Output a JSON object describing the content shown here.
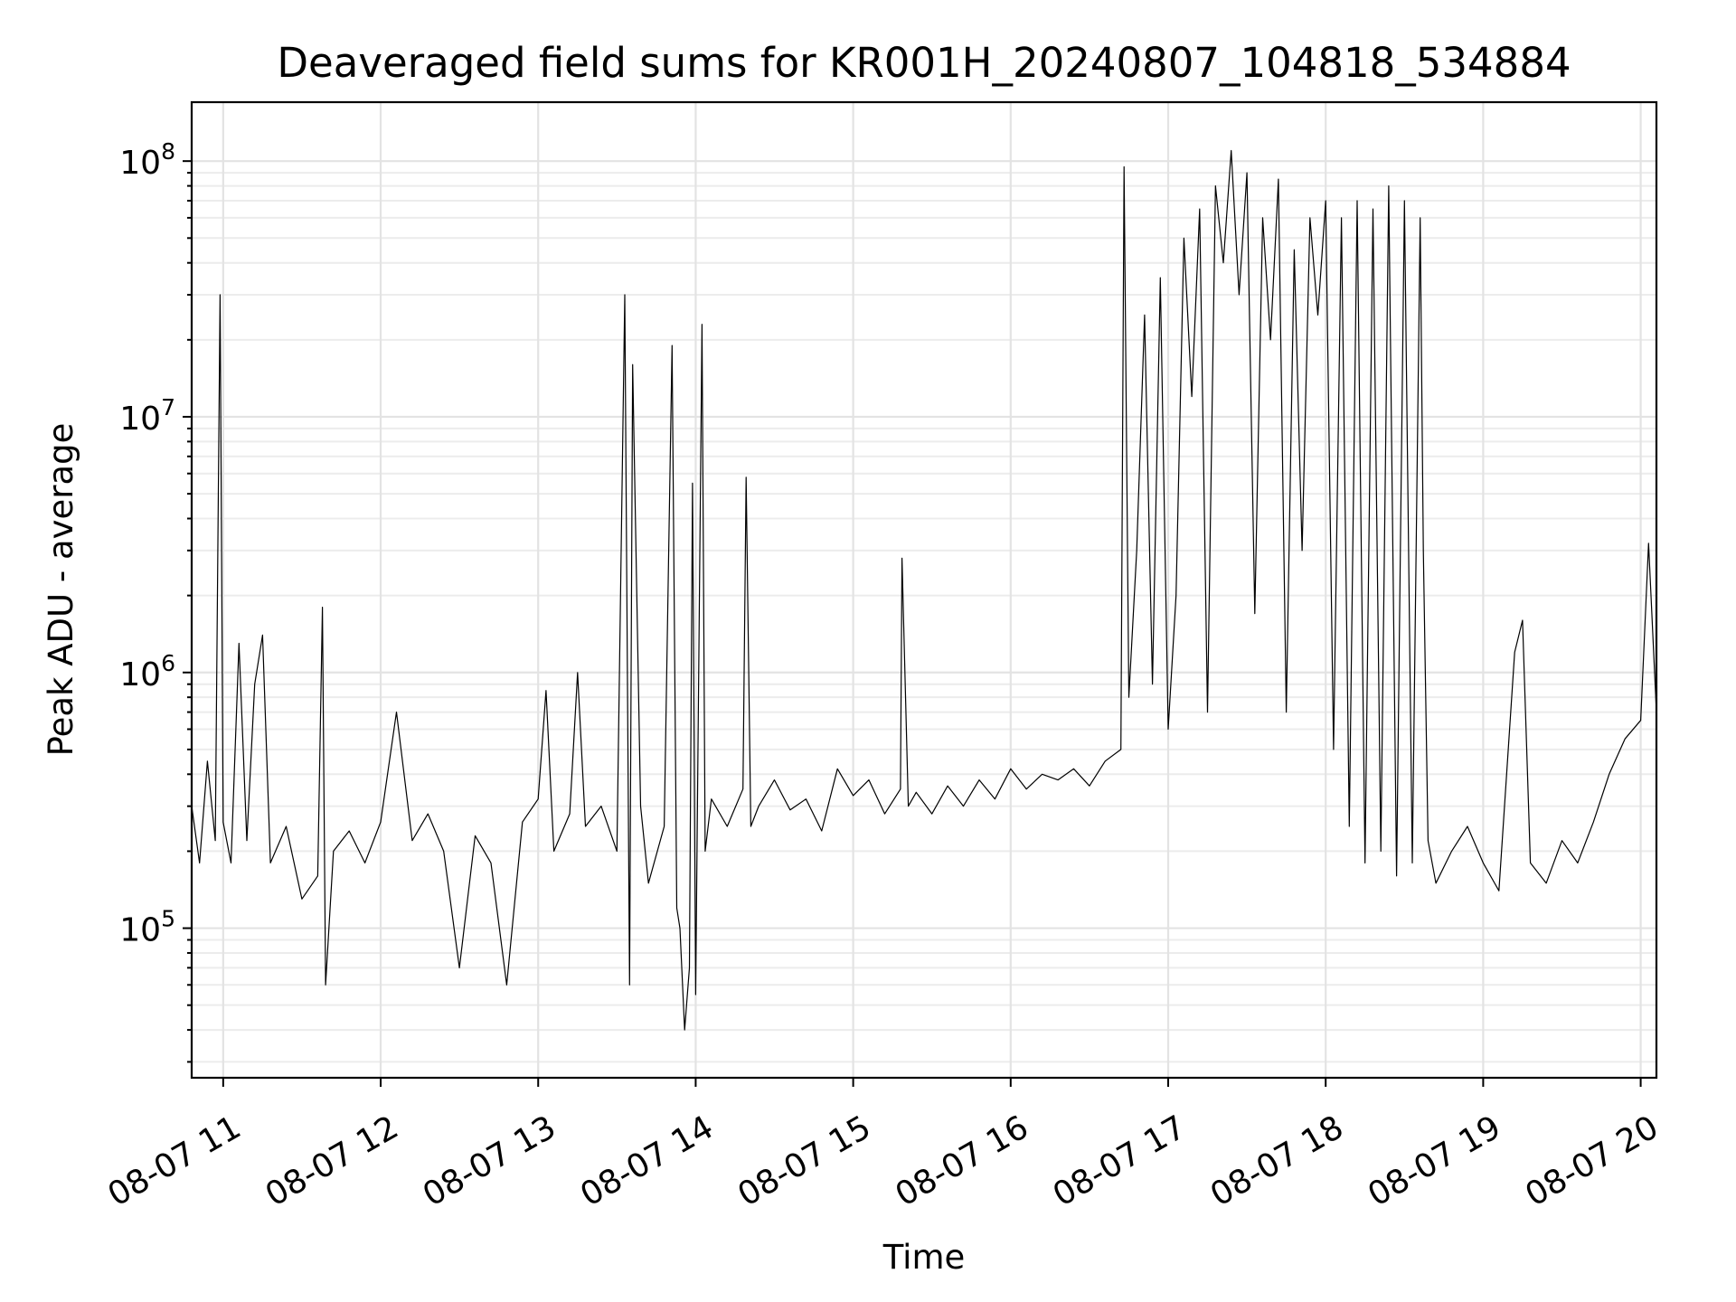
{
  "chart_data": {
    "type": "line",
    "title": "Deaveraged field sums for KR001H_20240807_104818_534884",
    "xlabel": "Time",
    "ylabel": "Peak ADU - average",
    "yscale": "log",
    "xlim": [
      10.8,
      20.1
    ],
    "ylim": [
      26000,
      170000000
    ],
    "grid": "on (major and minor)",
    "x_ticks": [
      {
        "label": "08-07 11",
        "value": 11
      },
      {
        "label": "08-07 12",
        "value": 12
      },
      {
        "label": "08-07 13",
        "value": 13
      },
      {
        "label": "08-07 14",
        "value": 14
      },
      {
        "label": "08-07 15",
        "value": 15
      },
      {
        "label": "08-07 16",
        "value": 16
      },
      {
        "label": "08-07 17",
        "value": 17
      },
      {
        "label": "08-07 18",
        "value": 18
      },
      {
        "label": "08-07 19",
        "value": 19
      },
      {
        "label": "08-07 20",
        "value": 20
      }
    ],
    "y_ticks": [
      {
        "base": "10",
        "exp": "5",
        "value": 100000
      },
      {
        "base": "10",
        "exp": "6",
        "value": 1000000
      },
      {
        "base": "10",
        "exp": "7",
        "value": 10000000
      },
      {
        "base": "10",
        "exp": "8",
        "value": 100000000
      }
    ],
    "x_unit": "hour of 08-07",
    "series": [
      {
        "color": "#000000",
        "points": [
          [
            10.8,
            300000
          ],
          [
            10.85,
            180000
          ],
          [
            10.9,
            450000
          ],
          [
            10.95,
            220000
          ],
          [
            10.98,
            30000000
          ],
          [
            11.0,
            260000
          ],
          [
            11.05,
            180000
          ],
          [
            11.1,
            1300000
          ],
          [
            11.15,
            220000
          ],
          [
            11.2,
            900000
          ],
          [
            11.25,
            1400000
          ],
          [
            11.3,
            180000
          ],
          [
            11.4,
            250000
          ],
          [
            11.5,
            130000
          ],
          [
            11.6,
            160000
          ],
          [
            11.63,
            1800000
          ],
          [
            11.65,
            60000
          ],
          [
            11.7,
            200000
          ],
          [
            11.8,
            240000
          ],
          [
            11.9,
            180000
          ],
          [
            12.0,
            260000
          ],
          [
            12.1,
            700000
          ],
          [
            12.2,
            220000
          ],
          [
            12.3,
            280000
          ],
          [
            12.4,
            200000
          ],
          [
            12.5,
            70000
          ],
          [
            12.6,
            230000
          ],
          [
            12.7,
            180000
          ],
          [
            12.8,
            60000
          ],
          [
            12.9,
            260000
          ],
          [
            13.0,
            320000
          ],
          [
            13.05,
            850000
          ],
          [
            13.1,
            200000
          ],
          [
            13.2,
            280000
          ],
          [
            13.25,
            1000000
          ],
          [
            13.3,
            250000
          ],
          [
            13.4,
            300000
          ],
          [
            13.5,
            200000
          ],
          [
            13.55,
            30000000
          ],
          [
            13.58,
            60000
          ],
          [
            13.6,
            16000000
          ],
          [
            13.65,
            300000
          ],
          [
            13.7,
            150000
          ],
          [
            13.8,
            250000
          ],
          [
            13.85,
            19000000
          ],
          [
            13.88,
            120000
          ],
          [
            13.9,
            100000
          ],
          [
            13.93,
            40000
          ],
          [
            13.96,
            70000
          ],
          [
            13.98,
            5500000
          ],
          [
            14.0,
            55000
          ],
          [
            14.04,
            23000000
          ],
          [
            14.06,
            200000
          ],
          [
            14.1,
            320000
          ],
          [
            14.2,
            250000
          ],
          [
            14.3,
            350000
          ],
          [
            14.32,
            5800000
          ],
          [
            14.35,
            250000
          ],
          [
            14.4,
            300000
          ],
          [
            14.5,
            380000
          ],
          [
            14.6,
            290000
          ],
          [
            14.7,
            320000
          ],
          [
            14.8,
            240000
          ],
          [
            14.9,
            420000
          ],
          [
            15.0,
            330000
          ],
          [
            15.1,
            380000
          ],
          [
            15.2,
            280000
          ],
          [
            15.3,
            350000
          ],
          [
            15.31,
            2800000
          ],
          [
            15.35,
            300000
          ],
          [
            15.4,
            340000
          ],
          [
            15.5,
            280000
          ],
          [
            15.6,
            360000
          ],
          [
            15.7,
            300000
          ],
          [
            15.8,
            380000
          ],
          [
            15.9,
            320000
          ],
          [
            16.0,
            420000
          ],
          [
            16.1,
            350000
          ],
          [
            16.2,
            400000
          ],
          [
            16.3,
            380000
          ],
          [
            16.4,
            420000
          ],
          [
            16.5,
            360000
          ],
          [
            16.6,
            450000
          ],
          [
            16.7,
            500000
          ],
          [
            16.72,
            95000000
          ],
          [
            16.75,
            800000
          ],
          [
            16.8,
            3000000
          ],
          [
            16.85,
            25000000
          ],
          [
            16.9,
            900000
          ],
          [
            16.95,
            35000000
          ],
          [
            17.0,
            600000
          ],
          [
            17.05,
            2000000
          ],
          [
            17.1,
            50000000
          ],
          [
            17.15,
            12000000
          ],
          [
            17.2,
            65000000
          ],
          [
            17.25,
            700000
          ],
          [
            17.3,
            80000000
          ],
          [
            17.35,
            40000000
          ],
          [
            17.4,
            110000000
          ],
          [
            17.45,
            30000000
          ],
          [
            17.5,
            90000000
          ],
          [
            17.55,
            1700000
          ],
          [
            17.6,
            60000000
          ],
          [
            17.65,
            20000000
          ],
          [
            17.7,
            85000000
          ],
          [
            17.75,
            700000
          ],
          [
            17.8,
            45000000
          ],
          [
            17.85,
            3000000
          ],
          [
            17.9,
            60000000
          ],
          [
            17.95,
            25000000
          ],
          [
            18.0,
            70000000
          ],
          [
            18.05,
            500000
          ],
          [
            18.1,
            60000000
          ],
          [
            18.15,
            250000
          ],
          [
            18.2,
            70000000
          ],
          [
            18.25,
            180000
          ],
          [
            18.3,
            65000000
          ],
          [
            18.35,
            200000
          ],
          [
            18.4,
            80000000
          ],
          [
            18.45,
            160000
          ],
          [
            18.5,
            70000000
          ],
          [
            18.55,
            180000
          ],
          [
            18.6,
            60000000
          ],
          [
            18.62,
            3000000
          ],
          [
            18.65,
            220000
          ],
          [
            18.7,
            150000
          ],
          [
            18.8,
            200000
          ],
          [
            18.9,
            250000
          ],
          [
            19.0,
            180000
          ],
          [
            19.1,
            140000
          ],
          [
            19.2,
            1200000
          ],
          [
            19.25,
            1600000
          ],
          [
            19.3,
            180000
          ],
          [
            19.4,
            150000
          ],
          [
            19.5,
            220000
          ],
          [
            19.6,
            180000
          ],
          [
            19.7,
            260000
          ],
          [
            19.8,
            400000
          ],
          [
            19.9,
            550000
          ],
          [
            20.0,
            650000
          ],
          [
            20.05,
            3200000
          ],
          [
            20.1,
            700000
          ]
        ]
      }
    ]
  }
}
